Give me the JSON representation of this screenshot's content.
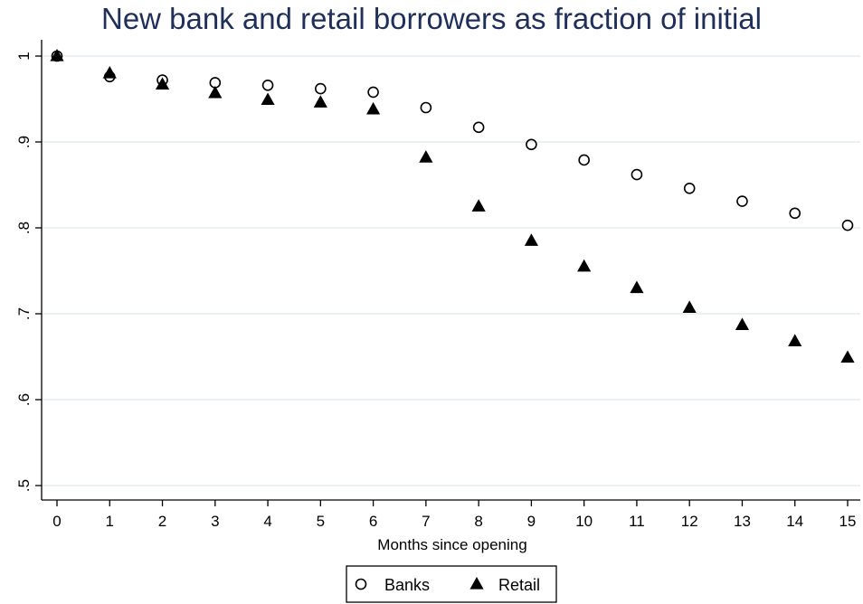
{
  "chart_data": {
    "type": "scatter",
    "title": "New bank and retail borrowers as fraction of initial",
    "xlabel": "Months since opening",
    "ylabel": "",
    "xlim": [
      0,
      15
    ],
    "ylim": [
      0.5,
      1
    ],
    "x": [
      0,
      1,
      2,
      3,
      4,
      5,
      6,
      7,
      8,
      9,
      10,
      11,
      12,
      13,
      14,
      15
    ],
    "x_tick_labels": [
      "0",
      "1",
      "2",
      "3",
      "4",
      "5",
      "6",
      "7",
      "8",
      "9",
      "10",
      "11",
      "12",
      "13",
      "14",
      "15"
    ],
    "y_ticks": [
      0.5,
      0.6,
      0.7,
      0.8,
      0.9,
      1
    ],
    "y_tick_labels": [
      ".5",
      ".6",
      ".7",
      ".8",
      ".9",
      "1"
    ],
    "grid": "horizontal",
    "legend_position": "bottom",
    "series": [
      {
        "name": "Banks",
        "marker": "hollow-circle",
        "color": "#000000",
        "values": [
          1.0,
          0.976,
          0.972,
          0.969,
          0.966,
          0.962,
          0.958,
          0.94,
          0.917,
          0.897,
          0.879,
          0.862,
          0.846,
          0.831,
          0.817,
          0.803
        ]
      },
      {
        "name": "Retail",
        "marker": "filled-triangle",
        "color": "#000000",
        "values": [
          1.0,
          0.98,
          0.967,
          0.957,
          0.949,
          0.946,
          0.938,
          0.882,
          0.825,
          0.785,
          0.755,
          0.73,
          0.707,
          0.687,
          0.668,
          0.649
        ]
      }
    ]
  }
}
